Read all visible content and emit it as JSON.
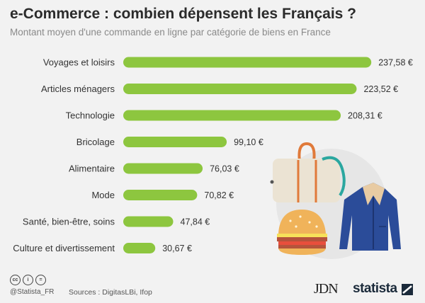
{
  "header": {
    "title": "e-Commerce : combien dépensent les Français ?",
    "subtitle": "Montant moyen d'une commande en ligne par catégorie de biens en France"
  },
  "chart_data": {
    "type": "bar",
    "orientation": "horizontal",
    "categories": [
      "Voyages et loisirs",
      "Articles ménagers",
      "Technologie",
      "Bricolage",
      "Alimentaire",
      "Mode",
      "Santé, bien-être, soins",
      "Culture et divertissement"
    ],
    "values": [
      237.58,
      223.52,
      208.31,
      99.1,
      76.03,
      70.82,
      47.84,
      30.67
    ],
    "value_labels": [
      "237,58 €",
      "223,52 €",
      "208,31 €",
      "99,10 €",
      "76,03 €",
      "70,82 €",
      "47,84 €",
      "30,67 €"
    ],
    "unit": "€",
    "bar_color": "#8dc63f",
    "grid": false,
    "legend": "none"
  },
  "illustration": {
    "icons": [
      "travel-bag-icon",
      "burger-icon",
      "jacket-icon"
    ]
  },
  "footer": {
    "license_icons": [
      "cc-icon",
      "attribution-icon",
      "no-derivatives-icon"
    ],
    "license_glyphs": [
      "cc",
      "i",
      "="
    ],
    "handle": "@Statista_FR",
    "sources": "Sources : DigitasLBi, Ifop",
    "brand_jdn": "JDN",
    "brand_statista": "statista"
  }
}
